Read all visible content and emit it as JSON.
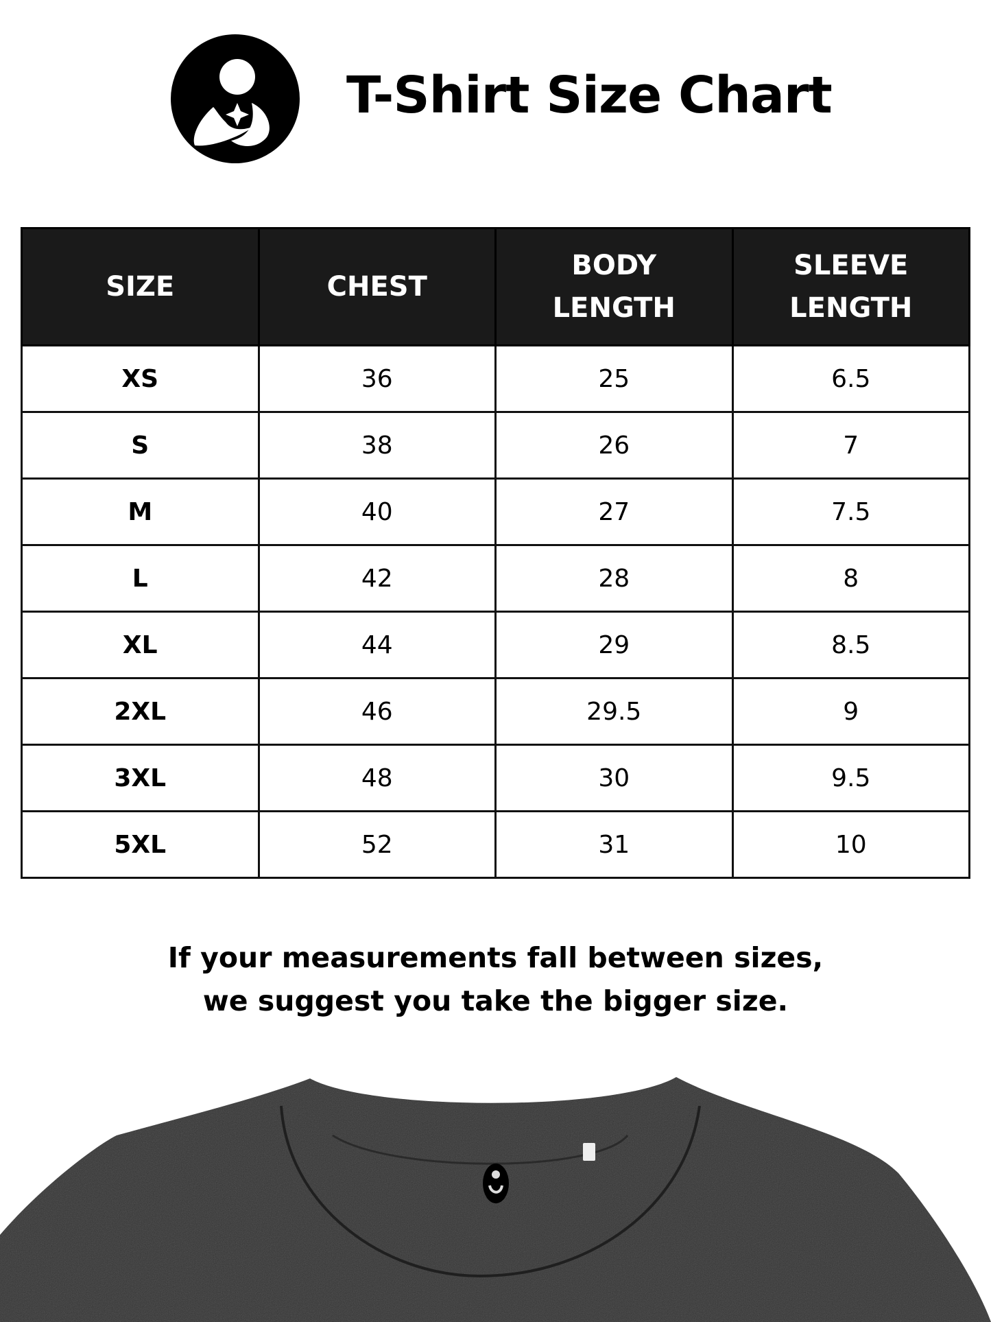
{
  "header": {
    "title": "T-Shirt Size Chart",
    "logo": "mother-child-logo"
  },
  "table": {
    "columns": [
      [
        "SIZE"
      ],
      [
        "CHEST"
      ],
      [
        "BODY",
        "LENGTH"
      ],
      [
        "SLEEVE",
        "LENGTH"
      ]
    ],
    "rows": [
      [
        "XS",
        "36",
        "25",
        "6.5"
      ],
      [
        "S",
        "38",
        "26",
        "7"
      ],
      [
        "M",
        "40",
        "27",
        "7.5"
      ],
      [
        "L",
        "42",
        "28",
        "8"
      ],
      [
        "XL",
        "44",
        "29",
        "8.5"
      ],
      [
        "2XL",
        "46",
        "29.5",
        "9"
      ],
      [
        "3XL",
        "48",
        "30",
        "9.5"
      ],
      [
        "5XL",
        "52",
        "31",
        "10"
      ]
    ]
  },
  "note": {
    "line1": "If your measurements fall between sizes,",
    "line2": "we suggest you take the bigger size."
  },
  "colors": {
    "header_bg": "#1a1a1a",
    "shirt": "#333333"
  }
}
